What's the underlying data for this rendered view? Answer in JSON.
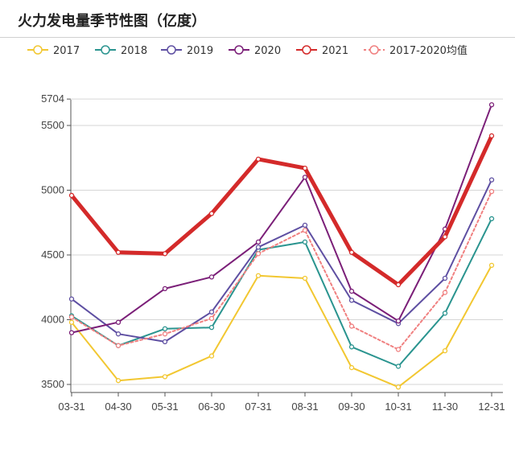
{
  "title": "火力发电量季节性图（亿度）",
  "chart_data": {
    "type": "line",
    "title": "火力发电量季节性图（亿度）",
    "xlabel": "",
    "ylabel": "",
    "categories": [
      "03-31",
      "04-30",
      "05-31",
      "06-30",
      "07-31",
      "08-31",
      "09-30",
      "10-31",
      "11-30",
      "12-31"
    ],
    "y_ticks": [
      "3500",
      "4000",
      "4500",
      "5000",
      "5500",
      "5704"
    ],
    "ylim": [
      3450,
      5704
    ],
    "grid": true,
    "legend_position": "top",
    "series": [
      {
        "name": "2017",
        "color": "#f2c731",
        "dashed": false,
        "width": 2,
        "values": [
          3980,
          3530,
          3560,
          3720,
          4340,
          4320,
          3630,
          3480,
          3760,
          4420
        ]
      },
      {
        "name": "2018",
        "color": "#2a948f",
        "dashed": false,
        "width": 2,
        "values": [
          4030,
          3800,
          3930,
          3940,
          4540,
          4600,
          3790,
          3640,
          4050,
          4780
        ]
      },
      {
        "name": "2019",
        "color": "#5e4fa2",
        "dashed": false,
        "width": 2,
        "values": [
          4160,
          3890,
          3830,
          4060,
          4560,
          4730,
          4150,
          3970,
          4320,
          5080
        ]
      },
      {
        "name": "2020",
        "color": "#7b1f78",
        "dashed": false,
        "width": 2,
        "values": [
          3900,
          3980,
          4240,
          4330,
          4600,
          5100,
          4220,
          3990,
          4700,
          5660
        ]
      },
      {
        "name": "2021",
        "color": "#d42a2a",
        "dashed": false,
        "width": 5,
        "values": [
          4960,
          4520,
          4510,
          4820,
          5240,
          5170,
          4520,
          4270,
          4640,
          5420
        ]
      },
      {
        "name": "2017-2020均值",
        "color": "#f08080",
        "dashed": true,
        "width": 2,
        "values": [
          4020,
          3800,
          3890,
          4010,
          4510,
          4690,
          3950,
          3770,
          4210,
          4990
        ]
      }
    ]
  }
}
